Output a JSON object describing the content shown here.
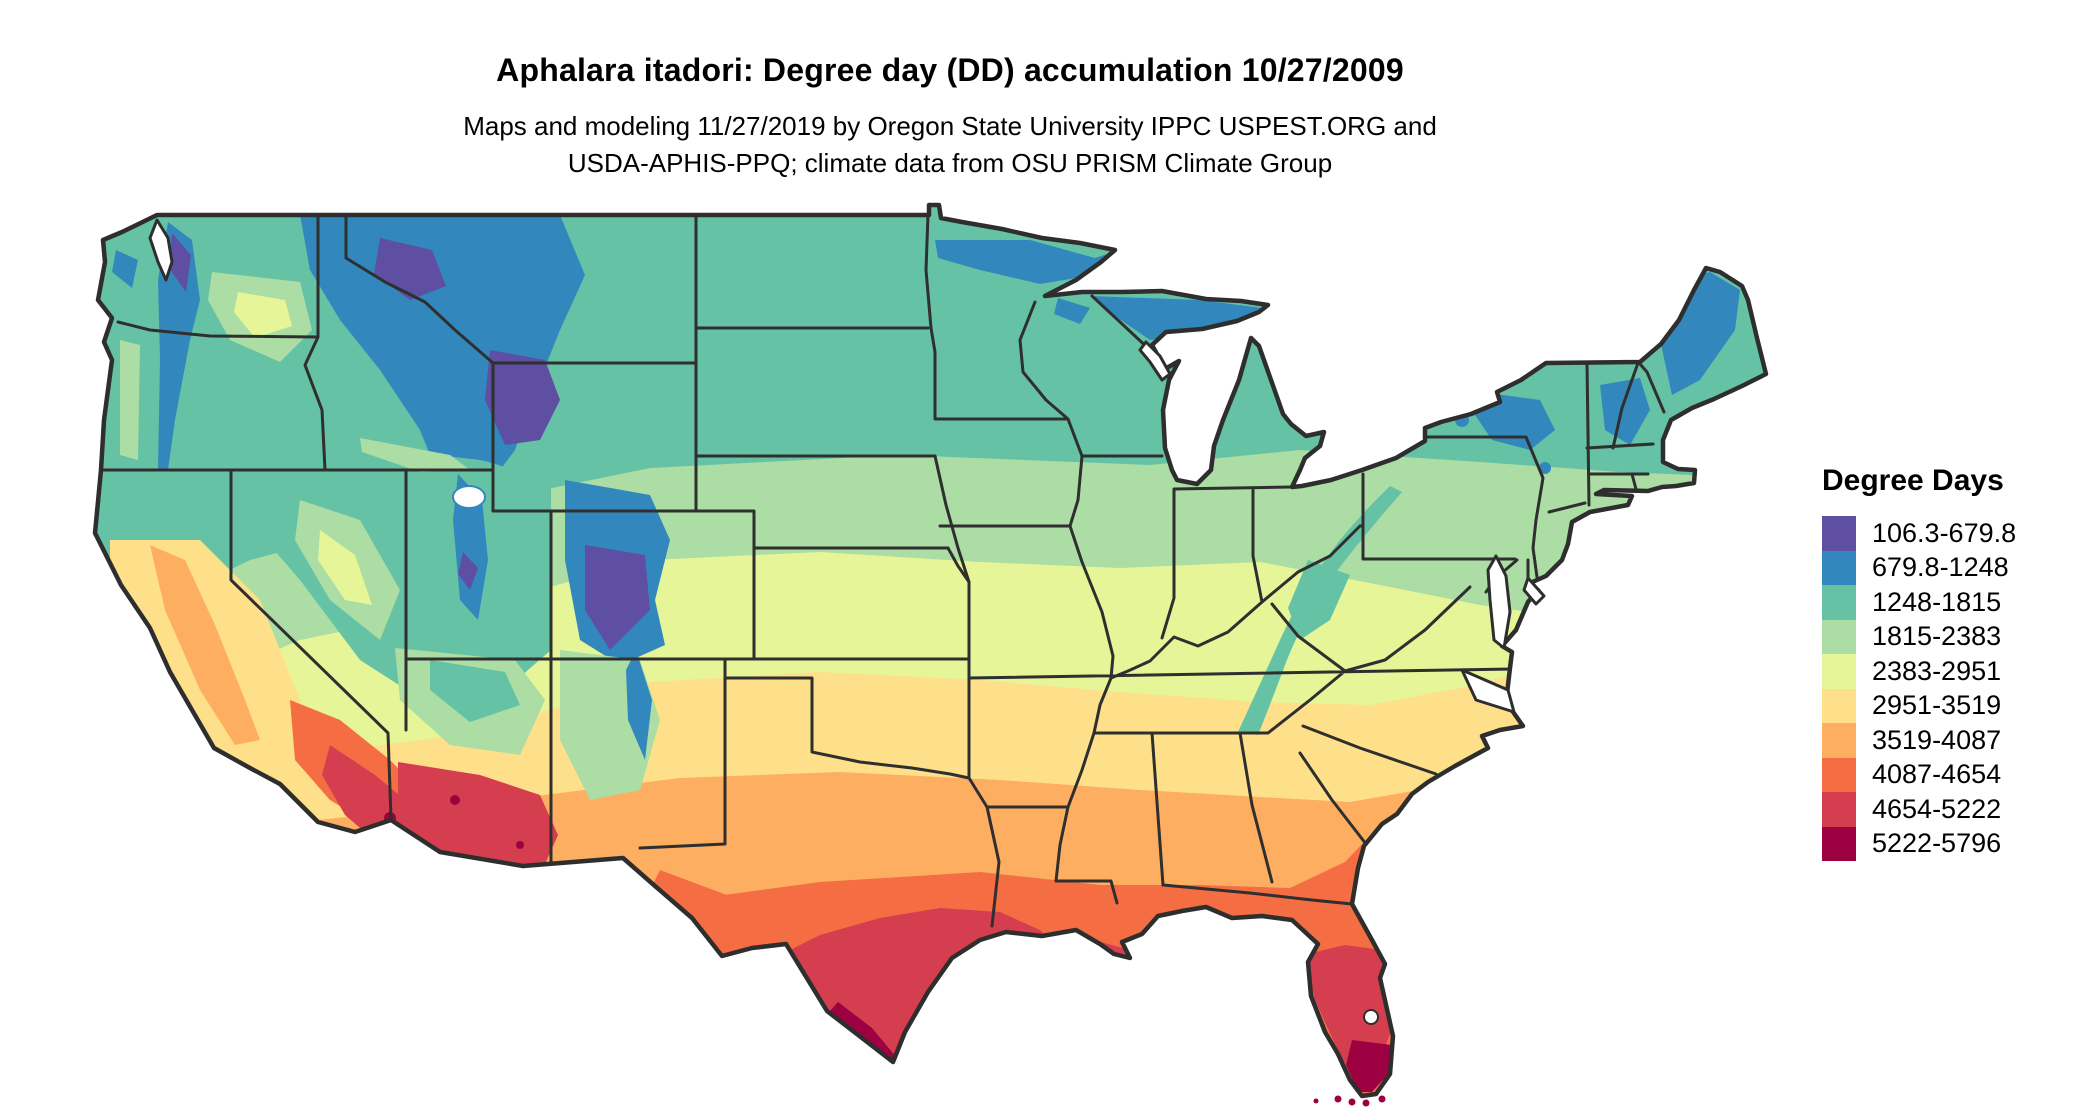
{
  "title": "Aphalara itadori: Degree day (DD) accumulation 10/27/2009",
  "subtitle": {
    "line1": "Maps and modeling 11/27/2019 by Oregon State University IPPC USPEST.ORG and",
    "line2": "USDA-APHIS-PPQ; climate data from OSU PRISM Climate Group"
  },
  "legend": {
    "title": "Degree Days",
    "entries": [
      {
        "range": "106.3-679.8",
        "color": "#5e4fa2"
      },
      {
        "range": "679.8-1248",
        "color": "#3288bd"
      },
      {
        "range": "1248-1815",
        "color": "#66c2a5"
      },
      {
        "range": "1815-2383",
        "color": "#abdda4"
      },
      {
        "range": "2383-2951",
        "color": "#e6f598"
      },
      {
        "range": "2951-3519",
        "color": "#fee08b"
      },
      {
        "range": "3519-4087",
        "color": "#fdae61"
      },
      {
        "range": "4087-4654",
        "color": "#f46d43"
      },
      {
        "range": "4654-5222",
        "color": "#d53e4f"
      },
      {
        "range": "5222-5796",
        "color": "#9e0142"
      }
    ]
  },
  "map": {
    "region": "Contiguous United States",
    "border_color": "#2e2e2e",
    "water_color": "#ffffff"
  },
  "chart_data": {
    "type": "heatmap",
    "subtype": "choropleth-raster-map",
    "title": "Aphalara itadori: Degree day (DD) accumulation 10/27/2009",
    "legend_title": "Degree Days",
    "region": "Contiguous United States",
    "bins": [
      {
        "range": "106.3-679.8",
        "min": 106.3,
        "max": 679.8,
        "color": "#5e4fa2"
      },
      {
        "range": "679.8-1248",
        "min": 679.8,
        "max": 1248,
        "color": "#3288bd"
      },
      {
        "range": "1248-1815",
        "min": 1248,
        "max": 1815,
        "color": "#66c2a5"
      },
      {
        "range": "1815-2383",
        "min": 1815,
        "max": 2383,
        "color": "#abdda4"
      },
      {
        "range": "2383-2951",
        "min": 2383,
        "max": 2951,
        "color": "#e6f598"
      },
      {
        "range": "2951-3519",
        "min": 2951,
        "max": 3519,
        "color": "#fee08b"
      },
      {
        "range": "3519-4087",
        "min": 3519,
        "max": 4087,
        "color": "#fdae61"
      },
      {
        "range": "4087-4654",
        "min": 4087,
        "max": 4654,
        "color": "#f46d43"
      },
      {
        "range": "4654-5222",
        "min": 4654,
        "max": 5222,
        "color": "#d53e4f"
      },
      {
        "range": "5222-5796",
        "min": 5222,
        "max": 5796,
        "color": "#9e0142"
      }
    ],
    "gradient_pattern": "cool (blue/purple) in northern states and high mountains, warm (orange/red/magenta) toward southern Texas, Arizona low deserts and south Florida",
    "legend_position": "right"
  }
}
